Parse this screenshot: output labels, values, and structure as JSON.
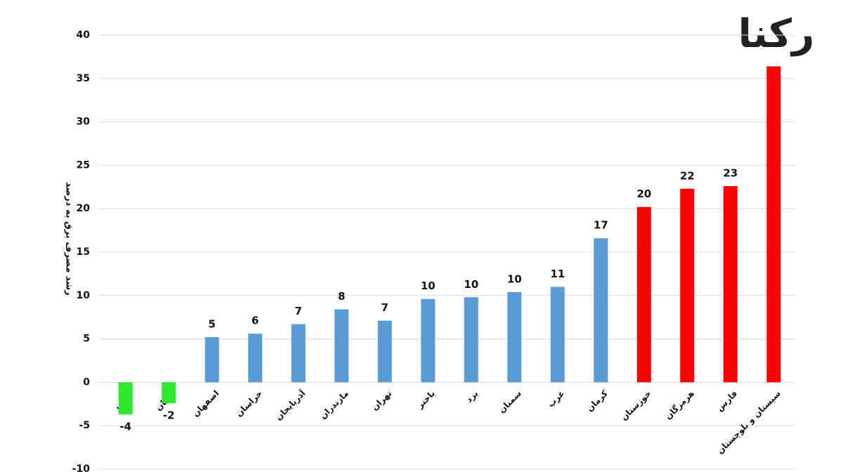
{
  "chart_data": {
    "type": "bar",
    "logo": "رکنا",
    "y_label": "رشد مصرف برق به درصد",
    "categories": [
      "گیلان",
      "زنجان",
      "اصفهان",
      "خراسان",
      "آذربایجان",
      "مازندران",
      "تهران",
      "باختر",
      "یزد",
      "سمنان",
      "غرب",
      "کرمان",
      "خوزستان",
      "هرمزگان",
      "فارس",
      "سیستان و بلوچستان"
    ],
    "values": [
      -3.7,
      -2.4,
      5.2,
      5.6,
      6.7,
      8.4,
      7.1,
      9.6,
      9.8,
      10.4,
      11.0,
      16.6,
      20.2,
      22.3,
      22.6,
      36.4
    ],
    "value_labels": [
      "-4",
      "-2",
      "5",
      "6",
      "7",
      "8",
      "7",
      "10",
      "10",
      "10",
      "11",
      "17",
      "20",
      "22",
      "23",
      null
    ],
    "colors": [
      "#2ee82e",
      "#2ee82e",
      "#5b9bd5",
      "#5b9bd5",
      "#5b9bd5",
      "#5b9bd5",
      "#5b9bd5",
      "#5b9bd5",
      "#5b9bd5",
      "#5b9bd5",
      "#5b9bd5",
      "#5b9bd5",
      "#ff0000",
      "#ff0000",
      "#ff0000",
      "#ff0000"
    ],
    "ylim": [
      -10,
      40
    ],
    "yticks": [
      -10,
      -5,
      0,
      5,
      10,
      15,
      20,
      25,
      30,
      35,
      40
    ],
    "grid": true
  }
}
